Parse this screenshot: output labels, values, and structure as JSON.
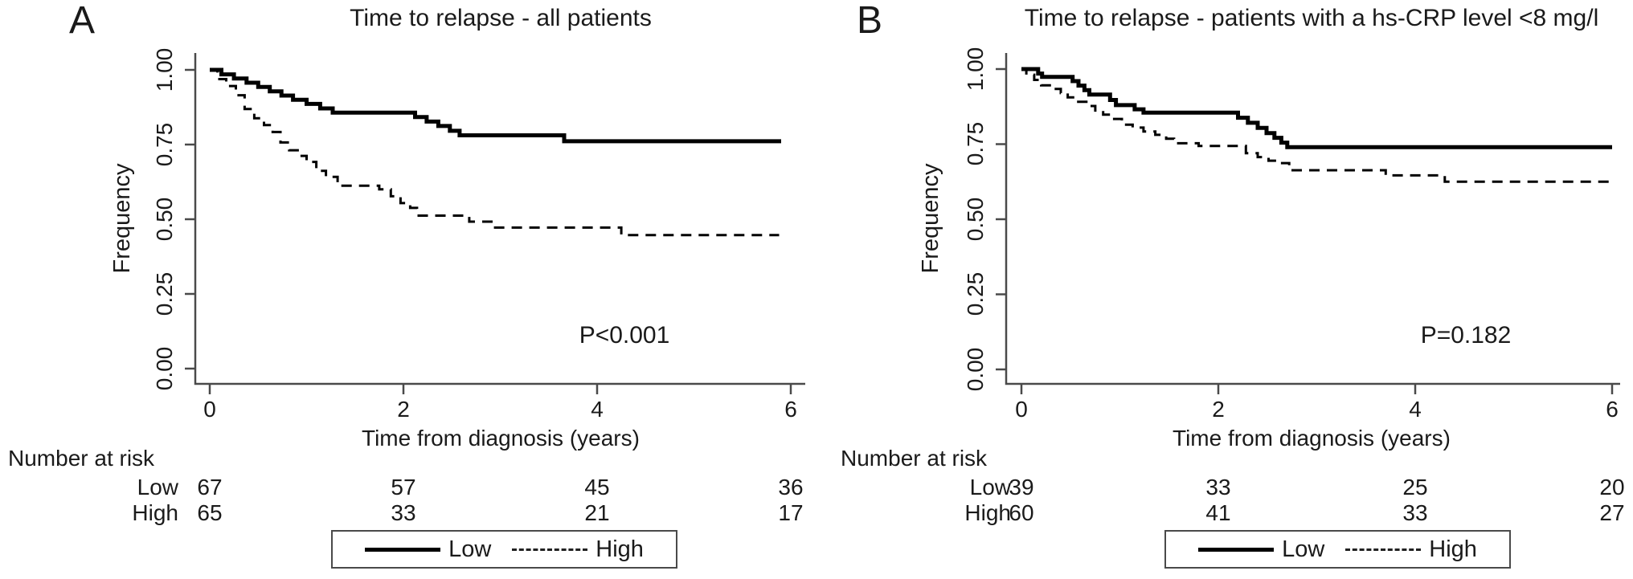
{
  "figure": {
    "background": "#ffffff",
    "text_color": "#1a1a1a",
    "axis_color": "#4a4a4a",
    "curve_color": "#000000"
  },
  "chart_data": [
    {
      "letter": "A",
      "type": "line",
      "subtype": "kaplan-meier-step",
      "title": "Time to relapse - all patients",
      "xlabel": "Time from diagnosis (years)",
      "ylabel": "Frequency",
      "xlim": [
        0,
        6
      ],
      "ylim": [
        0.0,
        1.0
      ],
      "xticks": [
        "0",
        "2",
        "4",
        "6"
      ],
      "yticks": [
        "1.00",
        "0.75",
        "0.50",
        "0.25",
        "0.00"
      ],
      "p_value": "P<0.001",
      "series": [
        {
          "name": "Low",
          "style": "solid",
          "steps": [
            [
              0,
              1.0
            ],
            [
              0.12,
              0.985
            ],
            [
              0.25,
              0.971
            ],
            [
              0.38,
              0.957
            ],
            [
              0.5,
              0.943
            ],
            [
              0.62,
              0.928
            ],
            [
              0.74,
              0.914
            ],
            [
              0.86,
              0.9
            ],
            [
              1.0,
              0.886
            ],
            [
              1.14,
              0.871
            ],
            [
              1.27,
              0.857
            ],
            [
              2.12,
              0.842
            ],
            [
              2.24,
              0.827
            ],
            [
              2.36,
              0.812
            ],
            [
              2.48,
              0.796
            ],
            [
              2.58,
              0.781
            ],
            [
              3.66,
              0.761
            ],
            [
              5.9,
              0.761
            ]
          ]
        },
        {
          "name": "High",
          "style": "dashed",
          "steps": [
            [
              0,
              1.0
            ],
            [
              0.08,
              0.969
            ],
            [
              0.17,
              0.946
            ],
            [
              0.27,
              0.915
            ],
            [
              0.36,
              0.869
            ],
            [
              0.46,
              0.838
            ],
            [
              0.56,
              0.815
            ],
            [
              0.65,
              0.792
            ],
            [
              0.73,
              0.757
            ],
            [
              0.82,
              0.731
            ],
            [
              0.92,
              0.712
            ],
            [
              1.0,
              0.692
            ],
            [
              1.1,
              0.662
            ],
            [
              1.2,
              0.642
            ],
            [
              1.32,
              0.612
            ],
            [
              1.75,
              0.6
            ],
            [
              1.87,
              0.577
            ],
            [
              1.97,
              0.554
            ],
            [
              2.07,
              0.538
            ],
            [
              2.14,
              0.512
            ],
            [
              2.68,
              0.492
            ],
            [
              2.93,
              0.472
            ],
            [
              4.25,
              0.447
            ],
            [
              5.88,
              0.447
            ]
          ]
        }
      ],
      "number_at_risk": {
        "label": "Number at risk",
        "rows": [
          {
            "name": "Low",
            "counts": [
              "67",
              "57",
              "45",
              "36"
            ]
          },
          {
            "name": "High",
            "counts": [
              "65",
              "33",
              "21",
              "17"
            ]
          }
        ]
      },
      "legend": {
        "items": [
          {
            "label": "Low",
            "style": "solid"
          },
          {
            "label": "High",
            "style": "dashed"
          }
        ]
      }
    },
    {
      "letter": "B",
      "type": "line",
      "subtype": "kaplan-meier-step",
      "title": "Time to relapse - patients with a hs-CRP level <8 mg/l",
      "xlabel": "Time from diagnosis (years)",
      "ylabel": "Frequency",
      "xlim": [
        0,
        6
      ],
      "ylim": [
        0.0,
        1.0
      ],
      "xticks": [
        "0",
        "2",
        "4",
        "6"
      ],
      "yticks": [
        "1.00",
        "0.75",
        "0.50",
        "0.25",
        "0.00"
      ],
      "p_value": "P=0.182",
      "series": [
        {
          "name": "Low",
          "style": "solid",
          "steps": [
            [
              0,
              1.0
            ],
            [
              0.17,
              0.985
            ],
            [
              0.21,
              0.974
            ],
            [
              0.52,
              0.96
            ],
            [
              0.58,
              0.945
            ],
            [
              0.64,
              0.93
            ],
            [
              0.69,
              0.915
            ],
            [
              0.9,
              0.897
            ],
            [
              0.96,
              0.88
            ],
            [
              1.15,
              0.866
            ],
            [
              1.24,
              0.855
            ],
            [
              2.2,
              0.838
            ],
            [
              2.3,
              0.821
            ],
            [
              2.4,
              0.804
            ],
            [
              2.49,
              0.787
            ],
            [
              2.57,
              0.771
            ],
            [
              2.64,
              0.755
            ],
            [
              2.7,
              0.74
            ],
            [
              6.0,
              0.74
            ]
          ]
        },
        {
          "name": "High",
          "style": "dashed",
          "steps": [
            [
              0,
              1.0
            ],
            [
              0.05,
              0.981
            ],
            [
              0.13,
              0.964
            ],
            [
              0.2,
              0.946
            ],
            [
              0.3,
              0.934
            ],
            [
              0.4,
              0.92
            ],
            [
              0.47,
              0.906
            ],
            [
              0.56,
              0.891
            ],
            [
              0.66,
              0.877
            ],
            [
              0.75,
              0.862
            ],
            [
              0.83,
              0.848
            ],
            [
              0.92,
              0.834
            ],
            [
              1.02,
              0.815
            ],
            [
              1.13,
              0.805
            ],
            [
              1.24,
              0.792
            ],
            [
              1.36,
              0.781
            ],
            [
              1.47,
              0.768
            ],
            [
              1.55,
              0.753
            ],
            [
              1.8,
              0.744
            ],
            [
              2.28,
              0.72
            ],
            [
              2.4,
              0.707
            ],
            [
              2.51,
              0.695
            ],
            [
              2.6,
              0.687
            ],
            [
              2.72,
              0.663
            ],
            [
              3.7,
              0.646
            ],
            [
              4.3,
              0.625
            ],
            [
              6.0,
              0.625
            ]
          ]
        }
      ],
      "number_at_risk": {
        "label": "Number at risk",
        "rows": [
          {
            "name": "Low",
            "counts": [
              "39",
              "33",
              "25",
              "20"
            ]
          },
          {
            "name": "High",
            "counts": [
              "60",
              "41",
              "33",
              "27"
            ]
          }
        ]
      },
      "legend": {
        "items": [
          {
            "label": "Low",
            "style": "solid"
          },
          {
            "label": "High",
            "style": "dashed"
          }
        ]
      }
    }
  ]
}
